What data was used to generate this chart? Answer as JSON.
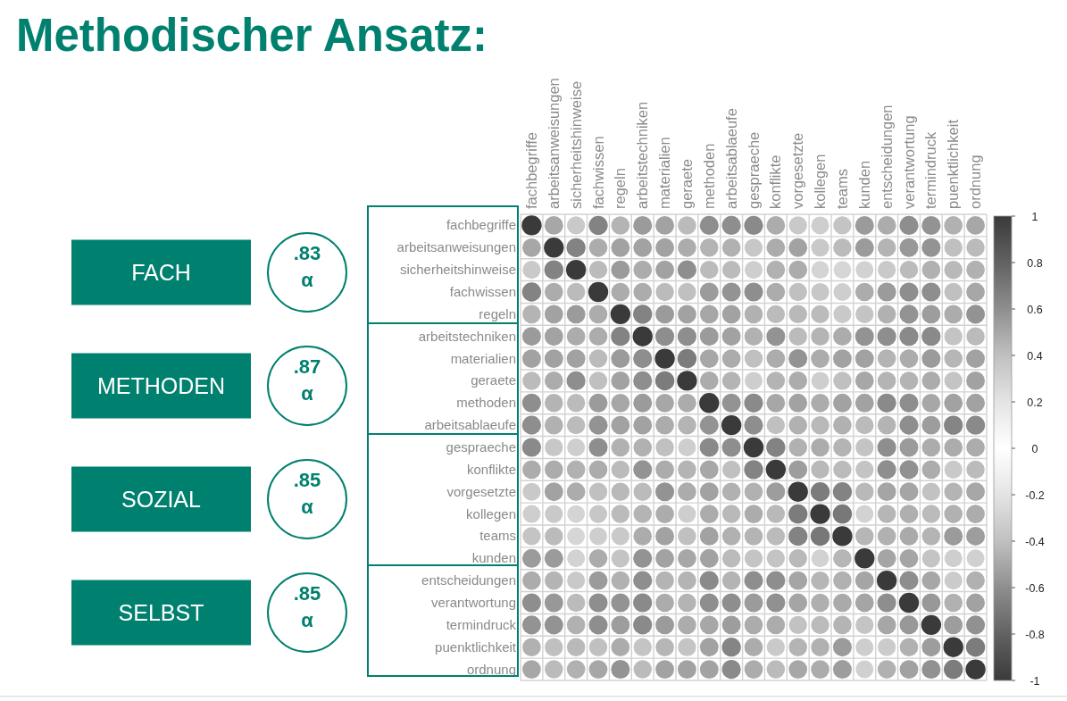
{
  "chart_data": [
    {
      "type": "heatmap",
      "title": "Methodischer Ansatz:",
      "categories": [
        "fachbegriffe",
        "arbeitsanweisungen",
        "sicherheitshinweise",
        "fachwissen",
        "regeln",
        "arbeitstechniken",
        "materialien",
        "geraete",
        "methoden",
        "arbeitsablaeufe",
        "gespraeche",
        "konflikte",
        "vorgesetzte",
        "kollegen",
        "teams",
        "kunden",
        "entscheidungen",
        "verantwortung",
        "termindruck",
        "puenktlichkeit",
        "ordnung"
      ],
      "y_categories": [
        "fachbegriffe",
        "arbeitsanweisungen",
        "sicherheitshinweise",
        "fachwissen",
        "regeln",
        "arbeitstechniken",
        "materialien",
        "geraete",
        "methoden",
        "arbeitsablaeufe",
        "gespraeche",
        "konflikte",
        "vorgesetzte",
        "kollegen",
        "teams",
        "kunden",
        "entscheidungen",
        "verantwortung",
        "termindruck",
        "puenktlichkeit",
        "ordnung"
      ],
      "cells": [
        [
          1,
          0.5,
          0.35,
          0.65,
          0.45,
          0.55,
          0.52,
          0.42,
          0.6,
          0.6,
          0.62,
          0.48,
          0.35,
          0.32,
          0.38,
          0.55,
          0.48,
          0.6,
          0.58,
          0.46,
          0.5
        ],
        [
          0.5,
          1,
          0.65,
          0.48,
          0.52,
          0.52,
          0.52,
          0.48,
          0.45,
          0.46,
          0.36,
          0.48,
          0.52,
          0.35,
          0.42,
          0.55,
          0.45,
          0.56,
          0.58,
          0.4,
          0.42
        ],
        [
          0.35,
          0.65,
          1,
          0.42,
          0.55,
          0.48,
          0.52,
          0.6,
          0.42,
          0.42,
          0.32,
          0.46,
          0.48,
          0.29,
          0.28,
          0.3,
          0.35,
          0.42,
          0.46,
          0.43,
          0.46
        ],
        [
          0.65,
          0.48,
          0.42,
          1,
          0.48,
          0.48,
          0.42,
          0.4,
          0.55,
          0.58,
          0.6,
          0.48,
          0.4,
          0.36,
          0.32,
          0.48,
          0.55,
          0.6,
          0.6,
          0.4,
          0.5
        ],
        [
          0.45,
          0.52,
          0.55,
          0.48,
          1,
          0.65,
          0.55,
          0.52,
          0.5,
          0.52,
          0.46,
          0.42,
          0.43,
          0.42,
          0.35,
          0.38,
          0.46,
          0.58,
          0.54,
          0.48,
          0.58
        ],
        [
          0.55,
          0.52,
          0.48,
          0.48,
          0.65,
          1,
          0.6,
          0.6,
          0.55,
          0.52,
          0.46,
          0.58,
          0.42,
          0.45,
          0.48,
          0.58,
          0.6,
          0.62,
          0.62,
          0.38,
          0.42
        ],
        [
          0.52,
          0.52,
          0.52,
          0.42,
          0.55,
          0.6,
          1,
          0.68,
          0.5,
          0.48,
          0.4,
          0.48,
          0.58,
          0.48,
          0.52,
          0.52,
          0.45,
          0.48,
          0.55,
          0.44,
          0.52
        ],
        [
          0.42,
          0.48,
          0.6,
          0.4,
          0.52,
          0.6,
          0.68,
          1,
          0.48,
          0.45,
          0.32,
          0.45,
          0.48,
          0.32,
          0.4,
          0.5,
          0.45,
          0.45,
          0.48,
          0.38,
          0.52
        ],
        [
          0.6,
          0.45,
          0.42,
          0.55,
          0.5,
          0.55,
          0.5,
          0.48,
          1,
          0.58,
          0.62,
          0.5,
          0.52,
          0.48,
          0.52,
          0.52,
          0.62,
          0.6,
          0.5,
          0.52,
          0.52
        ],
        [
          0.6,
          0.46,
          0.42,
          0.58,
          0.52,
          0.52,
          0.48,
          0.45,
          0.58,
          1,
          0.6,
          0.4,
          0.46,
          0.43,
          0.46,
          0.42,
          0.45,
          0.6,
          0.54,
          0.64,
          0.62
        ],
        [
          0.62,
          0.36,
          0.32,
          0.6,
          0.46,
          0.46,
          0.4,
          0.32,
          0.62,
          0.6,
          1,
          0.65,
          0.46,
          0.48,
          0.45,
          0.38,
          0.6,
          0.55,
          0.48,
          0.48,
          0.48
        ],
        [
          0.48,
          0.48,
          0.46,
          0.48,
          0.42,
          0.58,
          0.48,
          0.45,
          0.5,
          0.4,
          0.65,
          1,
          0.54,
          0.43,
          0.42,
          0.38,
          0.6,
          0.59,
          0.48,
          0.35,
          0.42
        ],
        [
          0.35,
          0.52,
          0.48,
          0.4,
          0.43,
          0.42,
          0.58,
          0.48,
          0.52,
          0.46,
          0.46,
          0.54,
          1,
          0.68,
          0.65,
          0.43,
          0.51,
          0.51,
          0.39,
          0.45,
          0.5
        ],
        [
          0.32,
          0.35,
          0.29,
          0.36,
          0.42,
          0.45,
          0.48,
          0.32,
          0.48,
          0.43,
          0.48,
          0.43,
          0.68,
          1,
          0.7,
          0.3,
          0.44,
          0.47,
          0.42,
          0.46,
          0.48
        ],
        [
          0.38,
          0.42,
          0.28,
          0.32,
          0.35,
          0.48,
          0.52,
          0.4,
          0.52,
          0.46,
          0.45,
          0.42,
          0.65,
          0.7,
          1,
          0.44,
          0.46,
          0.49,
          0.45,
          0.55,
          0.54
        ],
        [
          0.55,
          0.55,
          0.3,
          0.48,
          0.38,
          0.58,
          0.52,
          0.5,
          0.52,
          0.42,
          0.38,
          0.38,
          0.43,
          0.3,
          0.44,
          1,
          0.51,
          0.51,
          0.38,
          0.32,
          0.31
        ],
        [
          0.48,
          0.45,
          0.35,
          0.55,
          0.46,
          0.6,
          0.45,
          0.45,
          0.62,
          0.45,
          0.6,
          0.6,
          0.51,
          0.44,
          0.46,
          0.51,
          1,
          0.6,
          0.5,
          0.34,
          0.46
        ],
        [
          0.6,
          0.56,
          0.42,
          0.6,
          0.58,
          0.62,
          0.48,
          0.45,
          0.6,
          0.6,
          0.55,
          0.59,
          0.51,
          0.47,
          0.49,
          0.51,
          0.6,
          1,
          0.56,
          0.46,
          0.52
        ],
        [
          0.58,
          0.58,
          0.46,
          0.6,
          0.54,
          0.62,
          0.55,
          0.48,
          0.5,
          0.54,
          0.48,
          0.48,
          0.39,
          0.42,
          0.45,
          0.38,
          0.5,
          0.56,
          1,
          0.54,
          0.59
        ],
        [
          0.46,
          0.4,
          0.43,
          0.4,
          0.48,
          0.38,
          0.44,
          0.38,
          0.52,
          0.64,
          0.48,
          0.35,
          0.45,
          0.46,
          0.55,
          0.32,
          0.34,
          0.46,
          0.54,
          1,
          0.68
        ],
        [
          0.5,
          0.42,
          0.46,
          0.5,
          0.58,
          0.42,
          0.52,
          0.52,
          0.52,
          0.62,
          0.48,
          0.42,
          0.5,
          0.48,
          0.54,
          0.31,
          0.46,
          0.52,
          0.59,
          0.68,
          1
        ]
      ],
      "clim": [
        -1,
        1
      ],
      "cticks": [
        -1,
        -0.8,
        -0.6,
        -0.4,
        -0.2,
        0,
        0.2,
        0.4,
        0.6,
        0.8,
        1
      ],
      "grid": true
    },
    {
      "type": "other",
      "annotations": [
        "FACH",
        ".83\nα",
        "METHODEN",
        ".87\nα",
        "SOZIAL",
        ".85\nα",
        "SELBST",
        ".85\nα"
      ]
    }
  ]
}
